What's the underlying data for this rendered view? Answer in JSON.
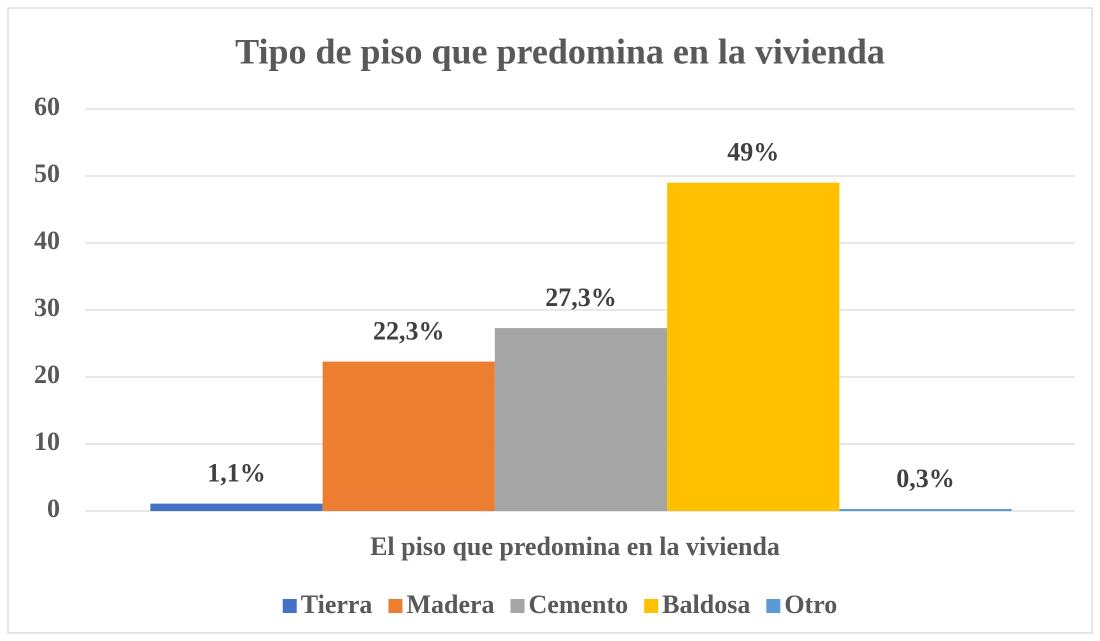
{
  "chart_data": {
    "type": "bar",
    "title": "Tipo de piso que predomina en la vivienda",
    "categories": [
      "El piso que predomina en la vivienda"
    ],
    "series": [
      {
        "name": "Tierra",
        "color": "#4472c4",
        "values": [
          1.1
        ],
        "value_labels": [
          "1,1%"
        ]
      },
      {
        "name": "Madera",
        "color": "#ed7d31",
        "values": [
          22.3
        ],
        "value_labels": [
          "22,3%"
        ]
      },
      {
        "name": "Cemento",
        "color": "#a5a5a5",
        "values": [
          27.3
        ],
        "value_labels": [
          "27,3%"
        ]
      },
      {
        "name": "Baldosa",
        "color": "#ffc000",
        "values": [
          49
        ],
        "value_labels": [
          "49%"
        ]
      },
      {
        "name": "Otro",
        "color": "#5b9bd5",
        "values": [
          0.3
        ],
        "value_labels": [
          "0,3%"
        ]
      }
    ],
    "ylim": [
      0,
      60
    ],
    "yticks": [
      0,
      10,
      20,
      30,
      40,
      50,
      60
    ],
    "grid": true,
    "legend": "bottom"
  }
}
